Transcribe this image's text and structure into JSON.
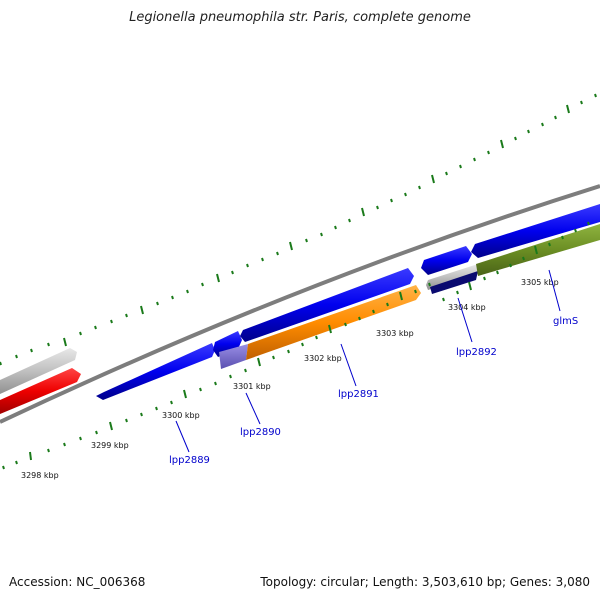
{
  "title": "Legionella pneumophila str. Paris, complete genome",
  "footer": {
    "accession": "Accession: NC_006368",
    "info": "Topology: circular; Length: 3,503,610 bp; Genes: 3,080"
  },
  "kbp_labels": [
    "3298 kbp",
    "3299 kbp",
    "3300 kbp",
    "3301 kbp",
    "3302 kbp",
    "3303 kbp",
    "3304 kbp",
    "3305 kbp"
  ],
  "genes": [
    "lpp2889",
    "lpp2890",
    "lpp2891",
    "lpp2892",
    "glmS"
  ],
  "colors": {
    "forward_strand": "#0000ee",
    "reverse_orange": "#ff8c00",
    "reverse_olive": "#6b8e23",
    "red_feature": "#ee0000",
    "grey_feature": "#c0c0c0",
    "backbone": "#808080",
    "ticks": "#1a7a1a",
    "label_blue": "#0000cc"
  }
}
